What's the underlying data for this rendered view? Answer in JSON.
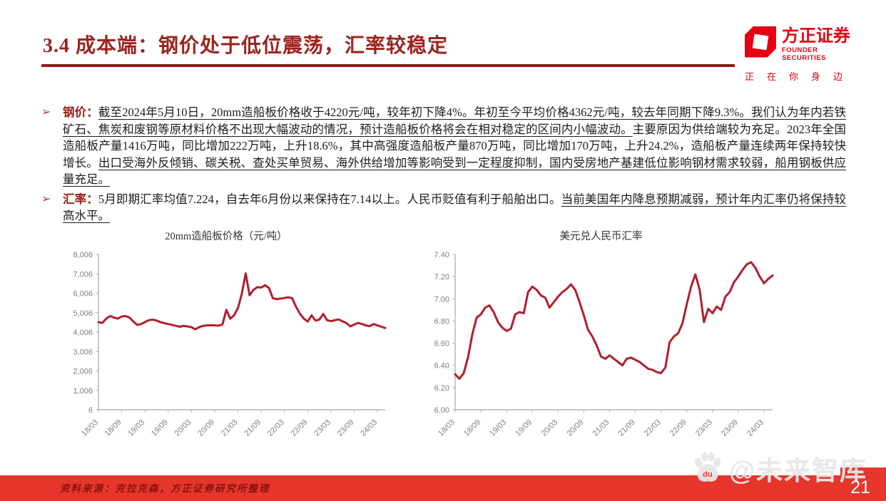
{
  "page": {
    "title": "3.4 成本端：钢价处于低位震荡，汇率较稳定",
    "page_number": "21"
  },
  "logo": {
    "name_cn": "方正证券",
    "name_en": "FOUNDER SECURITIES",
    "tagline": "正在你身边",
    "brand_color": "#e60012"
  },
  "bullets": [
    {
      "marker": "➢",
      "segments": [
        {
          "text": "钢价：",
          "style": "label"
        },
        {
          "text": "截至2024年5月10日，20mm造船板价格收于4220元/吨，较年初下降4%。年初至今平均价格4362元/吨，较去年同期下降9.3%。",
          "style": "underline"
        },
        {
          "text": "我们认为年内若铁矿石、焦炭和废钢等原材料价格不出现大幅波动的情况，预计造船板价格将会在相对稳定的区间内小幅波动。",
          "style": "underline"
        },
        {
          "text": "主要原因为供给端较为充足。2023年全国造船板产量1416万吨，同比增加222万吨，上升18.6%，其中高强度造船板产量870万吨，同比增加170万吨，上升24.2%，造船板产量连续两年保持较快增长。",
          "style": "normal"
        },
        {
          "text": "出口受海外反倾销、碳关税、查处买单贸易、海外供给增加等影响受到一定程度抑制，国内受房地产基建低位影响钢材需求较弱，船用钢板供应量充足。",
          "style": "underline"
        }
      ]
    },
    {
      "marker": "➢",
      "segments": [
        {
          "text": "汇率：",
          "style": "label"
        },
        {
          "text": "5月即期汇率均值7.224，自去年6月份以来保持在7.14以上。人民币贬值有利于船舶出口。",
          "style": "normal"
        },
        {
          "text": "当前美国年内降息预期减弱，预计年内汇率仍将保持较高水平。",
          "style": "underline"
        }
      ]
    }
  ],
  "chart_data": [
    {
      "type": "line",
      "title": "20mm造船板价格（元/吨）",
      "xlabel": "",
      "ylabel": "",
      "line_color": "#b01f2e",
      "axis_color": "#b3b3b3",
      "tick_text_color": "#7f7f7f",
      "grid": false,
      "legend": false,
      "y_min": 6,
      "y_max": 8006,
      "y_tick_labels": [
        "8,006",
        "7,006",
        "6,006",
        "5,006",
        "4,006",
        "3,006",
        "2,006",
        "1,006",
        "6"
      ],
      "x_tick_labels": [
        "18/03",
        "18/09",
        "19/03",
        "19/09",
        "20/03",
        "20/09",
        "21/03",
        "21/09",
        "22/03",
        "22/09",
        "23/03",
        "23/09",
        "24/03"
      ],
      "x_tick_step": 6,
      "x_note": "monthly points from 2018/03 to 2024/05",
      "values": [
        4520,
        4480,
        4700,
        4830,
        4760,
        4700,
        4810,
        4830,
        4760,
        4550,
        4380,
        4420,
        4520,
        4620,
        4650,
        4600,
        4520,
        4470,
        4420,
        4380,
        4330,
        4280,
        4330,
        4300,
        4260,
        4150,
        4260,
        4330,
        4350,
        4360,
        4350,
        4340,
        4400,
        5150,
        4700,
        4870,
        5250,
        5980,
        7030,
        5900,
        6180,
        6320,
        6300,
        6420,
        6280,
        5750,
        5700,
        5730,
        5760,
        5800,
        5750,
        5300,
        4950,
        4700,
        4550,
        4870,
        4600,
        4650,
        4940,
        4620,
        4570,
        4620,
        4660,
        4560,
        4470,
        4300,
        4400,
        4480,
        4420,
        4350,
        4310,
        4420,
        4350,
        4280,
        4220
      ]
    },
    {
      "type": "line",
      "title": "美元兑人民币汇率",
      "xlabel": "",
      "ylabel": "",
      "line_color": "#b01f2e",
      "axis_color": "#b3b3b3",
      "tick_text_color": "#7f7f7f",
      "grid": false,
      "legend": false,
      "y_min": 6.0,
      "y_max": 7.4,
      "y_tick_labels": [
        "7.40",
        "7.20",
        "7.00",
        "6.80",
        "6.60",
        "6.40",
        "6.20",
        "6.00"
      ],
      "x_tick_labels": [
        "18/03",
        "18/09",
        "19/03",
        "19/09",
        "20/03",
        "20/09",
        "21/03",
        "21/09",
        "22/03",
        "22/09",
        "23/03",
        "23/09",
        "24/03"
      ],
      "x_tick_step": 6,
      "x_note": "monthly points from 2018/03 to 2024/05",
      "values": [
        6.32,
        6.28,
        6.33,
        6.47,
        6.68,
        6.83,
        6.86,
        6.92,
        6.94,
        6.88,
        6.79,
        6.74,
        6.71,
        6.73,
        6.86,
        6.88,
        6.87,
        7.06,
        7.11,
        7.08,
        7.03,
        7.01,
        6.92,
        6.97,
        7.02,
        7.06,
        7.09,
        7.13,
        7.08,
        6.97,
        6.85,
        6.72,
        6.66,
        6.58,
        6.48,
        6.46,
        6.49,
        6.46,
        6.43,
        6.4,
        6.46,
        6.47,
        6.45,
        6.43,
        6.4,
        6.37,
        6.36,
        6.34,
        6.33,
        6.38,
        6.61,
        6.66,
        6.69,
        6.78,
        6.95,
        7.11,
        7.22,
        7.08,
        6.79,
        6.91,
        6.87,
        6.93,
        6.9,
        7.02,
        7.06,
        7.15,
        7.2,
        7.26,
        7.31,
        7.33,
        7.28,
        7.2,
        7.14,
        7.18,
        7.21
      ]
    }
  ],
  "footer": {
    "source": "资料来源：克拉克森，方正证券研究所整理",
    "bar_color": "#e6352b"
  },
  "watermark": {
    "icon": "baidu-paw-icon",
    "text": "@未来智库"
  }
}
